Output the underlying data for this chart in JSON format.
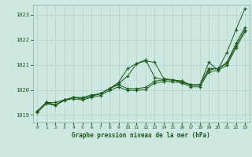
{
  "title": "Graphe pression niveau de la mer (hPa)",
  "background_color": "#cce8e0",
  "grid_color": "#aaccC4",
  "line_color": "#1a5c1a",
  "xlim": [
    -0.5,
    23.5
  ],
  "ylim": [
    1018.7,
    1023.4
  ],
  "yticks": [
    1019,
    1020,
    1021,
    1022,
    1023
  ],
  "xticks": [
    0,
    1,
    2,
    3,
    4,
    5,
    6,
    7,
    8,
    9,
    10,
    11,
    12,
    13,
    14,
    15,
    16,
    17,
    18,
    19,
    20,
    21,
    22,
    23
  ],
  "s1": [
    1019.15,
    1019.5,
    1019.5,
    1019.6,
    1019.7,
    1019.7,
    1019.8,
    1019.85,
    1020.05,
    1020.25,
    1020.55,
    1021.05,
    1021.2,
    1020.5,
    1020.4,
    1020.4,
    1020.3,
    1020.2,
    1020.2,
    1021.1,
    1020.8,
    1021.5,
    1022.4,
    1023.25
  ],
  "s2": [
    1019.15,
    1019.5,
    1019.4,
    1019.6,
    1019.7,
    1019.65,
    1019.75,
    1019.85,
    1020.05,
    1020.3,
    1020.85,
    1021.05,
    1021.15,
    1021.1,
    1020.45,
    1020.4,
    1020.35,
    1020.2,
    1020.2,
    1020.85,
    1020.85,
    1021.1,
    1021.85,
    1022.5
  ],
  "s3": [
    1019.15,
    1019.5,
    1019.4,
    1019.6,
    1019.7,
    1019.65,
    1019.75,
    1019.85,
    1020.05,
    1020.2,
    1020.05,
    1020.05,
    1020.1,
    1020.35,
    1020.4,
    1020.4,
    1020.35,
    1020.2,
    1020.2,
    1020.8,
    1020.85,
    1021.05,
    1021.75,
    1022.4
  ],
  "s4": [
    1019.1,
    1019.45,
    1019.38,
    1019.58,
    1019.65,
    1019.6,
    1019.7,
    1019.78,
    1019.98,
    1020.12,
    1019.98,
    1019.98,
    1020.02,
    1020.28,
    1020.33,
    1020.33,
    1020.28,
    1020.12,
    1020.12,
    1020.72,
    1020.78,
    1020.98,
    1021.68,
    1022.32
  ]
}
